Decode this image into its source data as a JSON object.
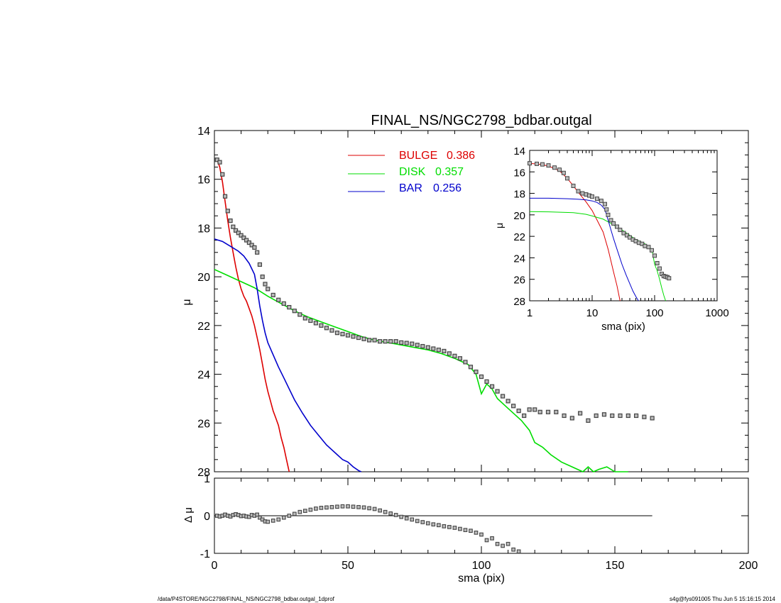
{
  "chart_data": {
    "type": "scatter",
    "title": "FINAL_NS/NGC2798_bdbar.outgal",
    "xlabel": "sma (pix)",
    "ylabel": "μ",
    "xlim": [
      0,
      200
    ],
    "ylim": [
      28,
      14
    ],
    "xticks": [
      "0",
      "50",
      "100",
      "150",
      "200"
    ],
    "yticks": [
      "14",
      "16",
      "18",
      "20",
      "22",
      "24",
      "26",
      "28"
    ],
    "legend": [
      {
        "label": "BULGE",
        "value": "0.386",
        "color": "#dd0000"
      },
      {
        "label": "DISK",
        "value": "0.357",
        "color": "#00dd00"
      },
      {
        "label": "BAR",
        "value": "0.256",
        "color": "#0000cc"
      }
    ],
    "series": [
      {
        "name": "data",
        "style": "squares",
        "color": "#444444",
        "x": [
          1,
          2,
          3,
          4,
          5,
          6,
          7,
          8,
          9,
          10,
          11,
          12,
          13,
          14,
          15,
          16,
          17,
          18,
          19,
          20,
          22,
          24,
          26,
          28,
          30,
          32,
          34,
          36,
          38,
          40,
          42,
          44,
          46,
          48,
          50,
          52,
          54,
          56,
          58,
          60,
          62,
          64,
          66,
          68,
          70,
          72,
          74,
          76,
          78,
          80,
          82,
          84,
          86,
          88,
          90,
          92,
          94,
          96,
          98,
          100,
          102,
          104,
          106,
          108,
          110,
          112,
          114,
          116,
          118,
          120,
          122,
          125,
          128,
          131,
          134,
          137,
          140,
          143,
          146,
          149,
          152,
          155,
          158,
          161,
          164
        ],
        "y": [
          15.2,
          15.3,
          15.8,
          16.7,
          17.3,
          17.7,
          17.95,
          18.1,
          18.2,
          18.3,
          18.4,
          18.5,
          18.6,
          18.7,
          18.8,
          19.0,
          19.5,
          20.0,
          20.3,
          20.5,
          20.75,
          20.95,
          21.1,
          21.25,
          21.4,
          21.55,
          21.7,
          21.8,
          21.9,
          22.0,
          22.1,
          22.2,
          22.3,
          22.35,
          22.4,
          22.45,
          22.5,
          22.55,
          22.6,
          22.6,
          22.65,
          22.65,
          22.65,
          22.65,
          22.7,
          22.72,
          22.75,
          22.8,
          22.85,
          22.9,
          22.95,
          23.0,
          23.05,
          23.15,
          23.25,
          23.35,
          23.5,
          23.7,
          23.9,
          24.1,
          24.3,
          24.5,
          24.7,
          24.9,
          25.1,
          25.3,
          25.5,
          25.7,
          25.45,
          25.45,
          25.55,
          25.55,
          25.55,
          25.7,
          25.8,
          25.6,
          25.9,
          25.7,
          25.65,
          25.7,
          25.7,
          25.7,
          25.7,
          25.75,
          25.8
        ]
      },
      {
        "name": "BULGE",
        "style": "line",
        "color": "#dd0000",
        "x": [
          1,
          2,
          3,
          4,
          5,
          6,
          7,
          8,
          9,
          10,
          11,
          12,
          13,
          14,
          15,
          16,
          17,
          18,
          19,
          20,
          21,
          22,
          23,
          24,
          25,
          26,
          27,
          28
        ],
        "y": [
          15.2,
          15.5,
          16.1,
          16.9,
          17.7,
          18.4,
          19.0,
          19.6,
          20.1,
          20.5,
          20.8,
          21.0,
          21.3,
          21.6,
          22.0,
          22.5,
          23.0,
          23.6,
          24.2,
          24.7,
          25.1,
          25.5,
          25.8,
          26.1,
          26.6,
          27.0,
          27.5,
          28.0
        ]
      },
      {
        "name": "DISK",
        "style": "line",
        "color": "#00dd00",
        "x": [
          0,
          5,
          10,
          15,
          20,
          25,
          30,
          35,
          40,
          45,
          50,
          55,
          60,
          65,
          70,
          75,
          80,
          85,
          90,
          95,
          98,
          100,
          102,
          104,
          106,
          110,
          115,
          118,
          120,
          123,
          126,
          130,
          134,
          138,
          140,
          142,
          144,
          147,
          150,
          155
        ],
        "y": [
          19.7,
          19.95,
          20.2,
          20.45,
          20.8,
          21.1,
          21.4,
          21.65,
          21.85,
          22.05,
          22.25,
          22.45,
          22.6,
          22.7,
          22.8,
          22.9,
          23.0,
          23.15,
          23.35,
          23.6,
          24.0,
          24.8,
          24.4,
          24.6,
          25.0,
          25.4,
          25.9,
          26.3,
          26.8,
          27.0,
          27.3,
          27.6,
          27.8,
          28.0,
          27.8,
          28.0,
          27.9,
          27.8,
          28.0,
          28.0
        ]
      },
      {
        "name": "BAR",
        "style": "line",
        "color": "#0000cc",
        "x": [
          0,
          3,
          6,
          9,
          11,
          13,
          15,
          16,
          17,
          18,
          19,
          20,
          22,
          24,
          26,
          28,
          30,
          33,
          36,
          39,
          42,
          45,
          48,
          50,
          52,
          54,
          55
        ],
        "y": [
          18.45,
          18.55,
          18.75,
          18.95,
          19.15,
          19.45,
          19.9,
          20.5,
          21.2,
          21.8,
          22.3,
          22.7,
          23.2,
          23.7,
          24.15,
          24.6,
          25.05,
          25.6,
          26.1,
          26.5,
          26.9,
          27.2,
          27.5,
          27.6,
          27.8,
          27.95,
          28.0
        ]
      }
    ],
    "inset": {
      "type": "line",
      "xscale": "log",
      "xlim": [
        1,
        1000
      ],
      "ylim": [
        28,
        14
      ],
      "xlabel": "sma (pix)",
      "ylabel": "μ",
      "xticks": [
        "1",
        "10",
        "100",
        "1000"
      ],
      "yticks": [
        "14",
        "16",
        "18",
        "20",
        "22",
        "24",
        "26",
        "28"
      ],
      "series": [
        {
          "name": "data",
          "style": "squares",
          "color": "#444444",
          "x": [
            1,
            1.3,
            1.6,
            2,
            2.5,
            3,
            3.5,
            4,
            5,
            6,
            7,
            8,
            9,
            10,
            12,
            14,
            16,
            17,
            18,
            20,
            22,
            25,
            28,
            32,
            36,
            40,
            45,
            50,
            56,
            63,
            70,
            80,
            90,
            100,
            110,
            120,
            130,
            140,
            150,
            160,
            170
          ],
          "y": [
            15.2,
            15.25,
            15.3,
            15.4,
            15.6,
            15.8,
            16.1,
            16.6,
            17.3,
            17.8,
            18.0,
            18.1,
            18.2,
            18.3,
            18.5,
            18.7,
            19.0,
            19.5,
            20.0,
            20.5,
            20.8,
            21.1,
            21.4,
            21.7,
            21.9,
            22.1,
            22.3,
            22.45,
            22.6,
            22.7,
            22.9,
            23.0,
            23.3,
            23.8,
            24.5,
            25.0,
            25.5,
            25.7,
            25.75,
            25.8,
            25.9
          ]
        },
        {
          "name": "BULGE",
          "style": "line",
          "color": "#dd0000",
          "x": [
            1,
            1.5,
            2,
            3,
            4,
            5,
            6,
            8,
            10,
            12,
            15,
            18,
            20,
            22,
            25,
            28
          ],
          "y": [
            15.2,
            15.3,
            15.45,
            15.9,
            16.6,
            17.3,
            17.9,
            18.8,
            19.6,
            20.5,
            21.6,
            23.2,
            24.3,
            25.3,
            26.6,
            28.0
          ]
        },
        {
          "name": "DISK",
          "style": "line",
          "color": "#00dd00",
          "x": [
            1,
            2,
            3,
            5,
            8,
            10,
            15,
            20,
            30,
            50,
            70,
            90,
            100,
            110,
            120,
            130,
            140,
            150
          ],
          "y": [
            19.7,
            19.72,
            19.75,
            19.8,
            19.95,
            20.1,
            20.4,
            20.8,
            21.4,
            22.3,
            22.7,
            23.2,
            24.6,
            25.2,
            26.0,
            26.8,
            27.5,
            28.0
          ]
        },
        {
          "name": "BAR",
          "style": "line",
          "color": "#0000cc",
          "x": [
            1,
            2,
            4,
            6,
            8,
            10,
            12,
            14,
            16,
            18,
            20,
            22,
            25,
            30,
            35,
            40,
            45,
            50,
            55
          ],
          "y": [
            18.45,
            18.45,
            18.5,
            18.55,
            18.6,
            18.7,
            18.85,
            19.1,
            19.5,
            20.5,
            21.4,
            22.2,
            23.2,
            24.6,
            25.6,
            26.4,
            27.1,
            27.6,
            28.0
          ]
        }
      ]
    },
    "residual": {
      "ylabel": "Δ μ",
      "ylim": [
        -1,
        1
      ],
      "yticks": [
        "1",
        "0",
        "-1"
      ],
      "zero_line_x": [
        0,
        164
      ],
      "series": [
        {
          "name": "residual",
          "style": "squares",
          "color": "#444444",
          "x": [
            1,
            2,
            3,
            4,
            5,
            6,
            7,
            8,
            9,
            10,
            11,
            12,
            13,
            14,
            15,
            16,
            17,
            18,
            19,
            20,
            22,
            24,
            26,
            28,
            30,
            32,
            34,
            36,
            38,
            40,
            42,
            44,
            46,
            48,
            50,
            52,
            54,
            56,
            58,
            60,
            62,
            64,
            66,
            68,
            70,
            72,
            74,
            76,
            78,
            80,
            82,
            84,
            86,
            88,
            90,
            92,
            94,
            96,
            98,
            100,
            102,
            104,
            106,
            108,
            110,
            112,
            114
          ],
          "y": [
            0.0,
            -0.02,
            0.0,
            0.03,
            0.0,
            -0.02,
            0.02,
            0.04,
            0.02,
            -0.01,
            0.0,
            -0.02,
            -0.03,
            0.02,
            0.0,
            0.03,
            -0.05,
            -0.1,
            -0.15,
            -0.16,
            -0.13,
            -0.1,
            -0.05,
            0.0,
            0.05,
            0.1,
            0.13,
            0.16,
            0.19,
            0.21,
            0.22,
            0.23,
            0.24,
            0.25,
            0.25,
            0.24,
            0.23,
            0.22,
            0.2,
            0.18,
            0.14,
            0.1,
            0.06,
            0.02,
            -0.03,
            -0.07,
            -0.1,
            -0.14,
            -0.17,
            -0.2,
            -0.23,
            -0.25,
            -0.28,
            -0.3,
            -0.32,
            -0.35,
            -0.38,
            -0.4,
            -0.45,
            -0.5,
            -0.65,
            -0.6,
            -0.75,
            -0.8,
            -0.75,
            -0.9,
            -0.95
          ]
        }
      ]
    }
  },
  "footer": {
    "left": "/data/P4STORE/NGC2798/FINAL_NS/NGC2798_bdbar.outgal_1dprof",
    "right": "s4g@fys091005  Thu Jun  5 15:16:15 2014"
  }
}
